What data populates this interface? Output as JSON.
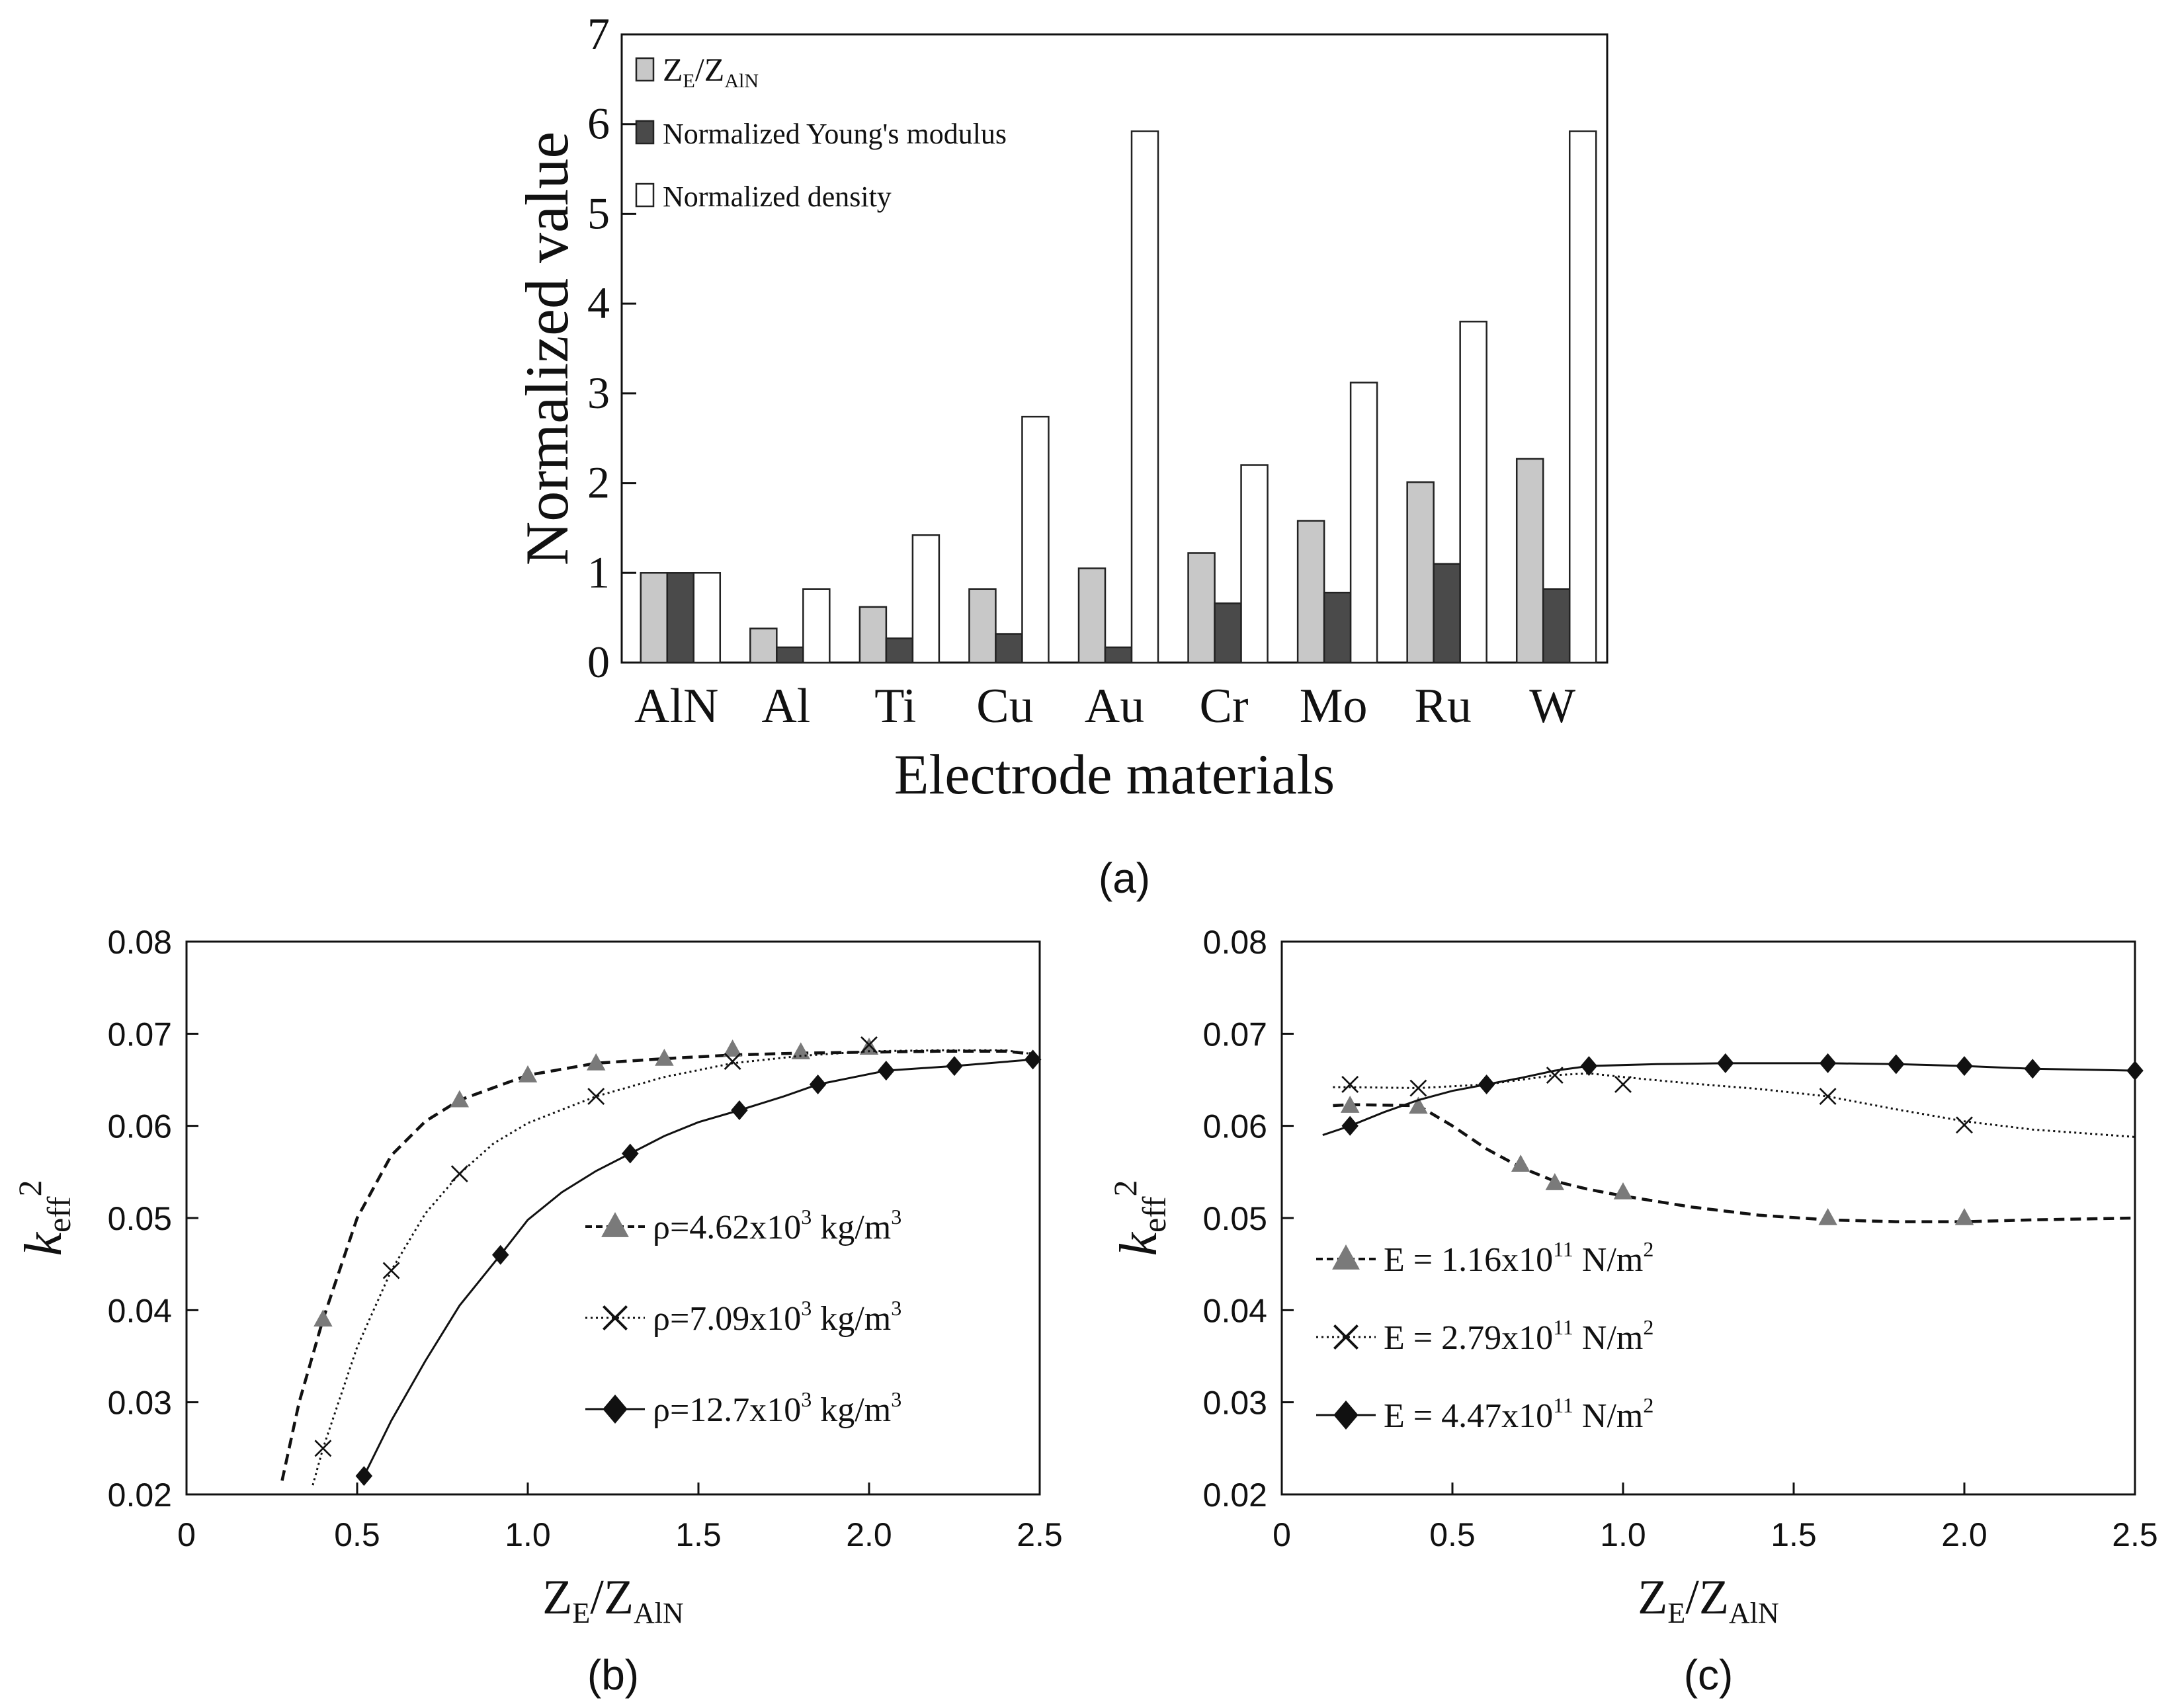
{
  "chart_data": [
    {
      "id": "a",
      "type": "bar",
      "panel_label": "(a)",
      "xlabel": "Electrode materials",
      "ylabel": "Normalized value",
      "ylim": [
        0,
        7
      ],
      "yticks": [
        "0",
        "1",
        "2",
        "3",
        "4",
        "5",
        "6",
        "7"
      ],
      "categories": [
        "AlN",
        "Al",
        "Ti",
        "Cu",
        "Au",
        "Cr",
        "Mo",
        "Ru",
        "W"
      ],
      "legend_position": "top-left",
      "series": [
        {
          "name": "Z_E/Z_AlN",
          "legend_main": "Z",
          "legend_sub1": "E",
          "legend_mid": "/Z",
          "legend_sub2": "AlN",
          "color": "#c8c8c8",
          "values": [
            1.0,
            0.38,
            0.62,
            0.82,
            1.05,
            1.22,
            1.58,
            2.01,
            2.27
          ]
        },
        {
          "name": "Normalized Young's modulus",
          "color": "#4a4a4a",
          "values": [
            1.0,
            0.17,
            0.27,
            0.32,
            0.17,
            0.66,
            0.78,
            1.1,
            0.82
          ]
        },
        {
          "name": "Normalized density",
          "color": "#ffffff",
          "values": [
            1.0,
            0.82,
            1.42,
            2.74,
            5.92,
            2.2,
            3.12,
            3.8,
            5.92
          ]
        }
      ]
    },
    {
      "id": "b",
      "type": "line",
      "panel_label": "(b)",
      "xlabel_main": "Z",
      "xlabel_sub1": "E",
      "xlabel_mid": "/Z",
      "xlabel_sub2": "AlN",
      "ylabel_main": "k",
      "ylabel_sub": "eff",
      "ylabel_sup": "2",
      "xlim": [
        0,
        2.5
      ],
      "ylim": [
        0.02,
        0.08
      ],
      "xticks": [
        "0",
        "0.5",
        "1.0",
        "1.5",
        "2.0",
        "2.5"
      ],
      "yticks": [
        "0.02",
        "0.03",
        "0.04",
        "0.05",
        "0.06",
        "0.07",
        "0.08"
      ],
      "legend_position": "center-right",
      "series": [
        {
          "name": "ρ=4.62x10^3 kg/m^3",
          "legend_pre": "ρ=4.62x10",
          "legend_sup1": "3",
          "legend_unit": " kg/m",
          "legend_sup2": "3",
          "marker": "triangle",
          "line": "dashed",
          "x": [
            0.4,
            0.8,
            1.0,
            1.2,
            1.4,
            1.6,
            1.8,
            2.0
          ],
          "y": [
            0.039,
            0.0628,
            0.0655,
            0.0668,
            0.0673,
            0.0683,
            0.068,
            0.0685
          ],
          "curve_x": [
            0.28,
            0.33,
            0.4,
            0.5,
            0.6,
            0.7,
            0.8,
            1.0,
            1.2,
            1.4,
            1.6,
            1.8,
            2.0,
            2.2,
            2.4,
            2.48
          ],
          "curve_y": [
            0.0215,
            0.03,
            0.039,
            0.05,
            0.0568,
            0.0605,
            0.0628,
            0.0655,
            0.0668,
            0.0673,
            0.0677,
            0.0679,
            0.068,
            0.0681,
            0.0681,
            0.0678
          ]
        },
        {
          "name": "ρ=7.09x10^3 kg/m^3",
          "legend_pre": "ρ=7.09x10",
          "legend_sup1": "3",
          "legend_unit": " kg/m",
          "legend_sup2": "3",
          "marker": "x",
          "line": "dotted",
          "x": [
            0.4,
            0.6,
            0.8,
            1.2,
            1.6,
            2.0
          ],
          "y": [
            0.025,
            0.0443,
            0.0548,
            0.0632,
            0.067,
            0.0688
          ],
          "curve_x": [
            0.37,
            0.4,
            0.5,
            0.6,
            0.7,
            0.8,
            0.9,
            1.0,
            1.2,
            1.4,
            1.6,
            1.8,
            2.0,
            2.2,
            2.4,
            2.48
          ],
          "curve_y": [
            0.021,
            0.025,
            0.036,
            0.0443,
            0.0505,
            0.0548,
            0.0581,
            0.0603,
            0.0632,
            0.0653,
            0.0668,
            0.0676,
            0.0681,
            0.0682,
            0.0682,
            0.0678
          ]
        },
        {
          "name": "ρ=12.7x10^3 kg/m^3",
          "legend_pre": "ρ=12.7x10",
          "legend_sup1": "3",
          "legend_unit": " kg/m",
          "legend_sup2": "3",
          "marker": "diamond",
          "line": "solid",
          "x": [
            0.52,
            0.92,
            1.3,
            1.62,
            1.85,
            2.05,
            2.25,
            2.48
          ],
          "y": [
            0.022,
            0.046,
            0.057,
            0.0617,
            0.0645,
            0.066,
            0.0665,
            0.0672
          ],
          "curve_x": [
            0.52,
            0.6,
            0.7,
            0.8,
            0.92,
            1.0,
            1.1,
            1.2,
            1.3,
            1.4,
            1.5,
            1.62,
            1.75,
            1.85,
            2.05,
            2.25,
            2.48
          ],
          "curve_y": [
            0.022,
            0.028,
            0.0345,
            0.0405,
            0.046,
            0.0498,
            0.0528,
            0.0551,
            0.057,
            0.0589,
            0.0604,
            0.0617,
            0.0632,
            0.0645,
            0.066,
            0.0665,
            0.0672
          ]
        }
      ]
    },
    {
      "id": "c",
      "type": "line",
      "panel_label": "(c)",
      "xlabel_main": "Z",
      "xlabel_sub1": "E",
      "xlabel_mid": "/Z",
      "xlabel_sub2": "AlN",
      "ylabel_main": "k",
      "ylabel_sub": "eff",
      "ylabel_sup": "2",
      "xlim": [
        0,
        2.5
      ],
      "ylim": [
        0.02,
        0.08
      ],
      "xticks": [
        "0",
        "0.5",
        "1.0",
        "1.5",
        "2.0",
        "2.5"
      ],
      "yticks": [
        "0.02",
        "0.03",
        "0.04",
        "0.05",
        "0.06",
        "0.07",
        "0.08"
      ],
      "legend_position": "lower-left",
      "series": [
        {
          "name": "E = 1.16x10^11 N/m^2",
          "legend_pre": "E = 1.16x10",
          "legend_sup1": "11",
          "legend_unit": " N/m",
          "legend_sup2": "2",
          "marker": "triangle",
          "line": "dashed",
          "x": [
            0.2,
            0.4,
            0.7,
            0.8,
            1.0,
            1.6,
            2.0
          ],
          "y": [
            0.0622,
            0.0621,
            0.0558,
            0.0538,
            0.0528,
            0.05,
            0.05
          ],
          "curve_x": [
            0.15,
            0.2,
            0.4,
            0.5,
            0.6,
            0.7,
            0.8,
            0.9,
            1.0,
            1.2,
            1.4,
            1.6,
            1.8,
            2.0,
            2.2,
            2.5
          ],
          "curve_y": [
            0.0622,
            0.0623,
            0.0622,
            0.06,
            0.0575,
            0.0555,
            0.054,
            0.0531,
            0.0524,
            0.0512,
            0.0503,
            0.0498,
            0.0496,
            0.0496,
            0.0498,
            0.05
          ]
        },
        {
          "name": "E = 2.79x10^11 N/m^2",
          "legend_pre": "E = 2.79x10",
          "legend_sup1": "11",
          "legend_unit": " N/m",
          "legend_sup2": "2",
          "marker": "x",
          "line": "dotted",
          "x": [
            0.2,
            0.4,
            0.8,
            1.0,
            1.6,
            2.0
          ],
          "y": [
            0.0645,
            0.0641,
            0.0655,
            0.0645,
            0.0632,
            0.0601
          ],
          "curve_x": [
            0.15,
            0.2,
            0.4,
            0.6,
            0.8,
            0.9,
            1.0,
            1.2,
            1.4,
            1.6,
            1.8,
            2.0,
            2.2,
            2.5
          ],
          "curve_y": [
            0.0642,
            0.0642,
            0.0641,
            0.0645,
            0.0655,
            0.0657,
            0.0653,
            0.0646,
            0.064,
            0.0632,
            0.0618,
            0.0605,
            0.0596,
            0.0588
          ]
        },
        {
          "name": "E = 4.47x10^11 N/m^2",
          "legend_pre": "E = 4.47x10",
          "legend_sup1": "11",
          "legend_unit": " N/m",
          "legend_sup2": "2",
          "marker": "diamond",
          "line": "solid",
          "x": [
            0.2,
            0.6,
            0.9,
            1.3,
            1.6,
            1.8,
            2.0,
            2.2,
            2.5
          ],
          "y": [
            0.06,
            0.0645,
            0.0665,
            0.0668,
            0.0668,
            0.0667,
            0.0665,
            0.0662,
            0.066
          ],
          "curve_x": [
            0.12,
            0.2,
            0.3,
            0.4,
            0.5,
            0.6,
            0.7,
            0.8,
            0.9,
            1.1,
            1.3,
            1.6,
            1.8,
            2.0,
            2.2,
            2.5
          ],
          "curve_y": [
            0.059,
            0.06,
            0.0615,
            0.0628,
            0.0638,
            0.0645,
            0.0652,
            0.066,
            0.0665,
            0.0667,
            0.0668,
            0.0668,
            0.0667,
            0.0665,
            0.0662,
            0.066
          ]
        }
      ]
    }
  ]
}
